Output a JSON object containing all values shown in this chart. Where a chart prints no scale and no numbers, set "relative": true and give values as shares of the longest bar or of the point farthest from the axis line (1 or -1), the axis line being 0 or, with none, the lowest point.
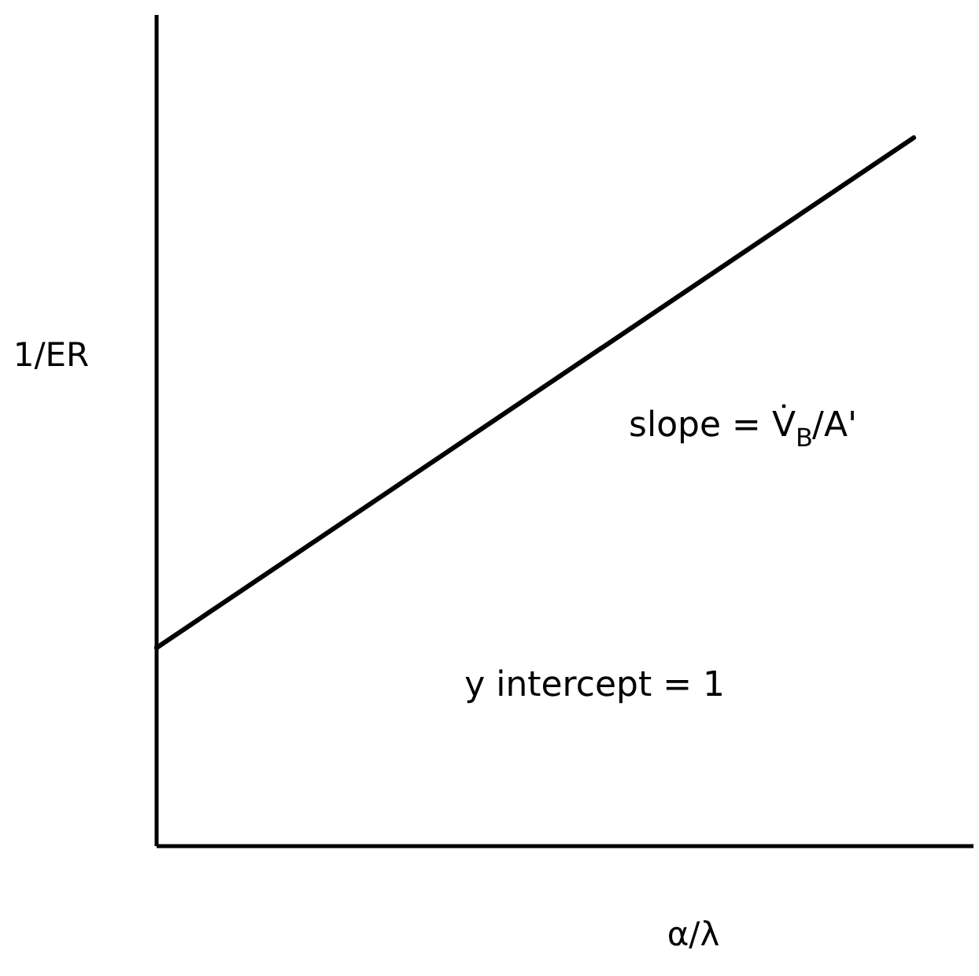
{
  "chart_data": {
    "type": "line",
    "relative": true,
    "xlabel": "α/λ",
    "ylabel": "1/ER",
    "annotations": [
      "slope = V̇$_{B}$/A'",
      "y intercept = 1"
    ],
    "categories": [
      null,
      null
    ],
    "series": [
      {
        "color": "#000000",
        "values": [
          0.28,
          1
        ]
      }
    ]
  }
}
